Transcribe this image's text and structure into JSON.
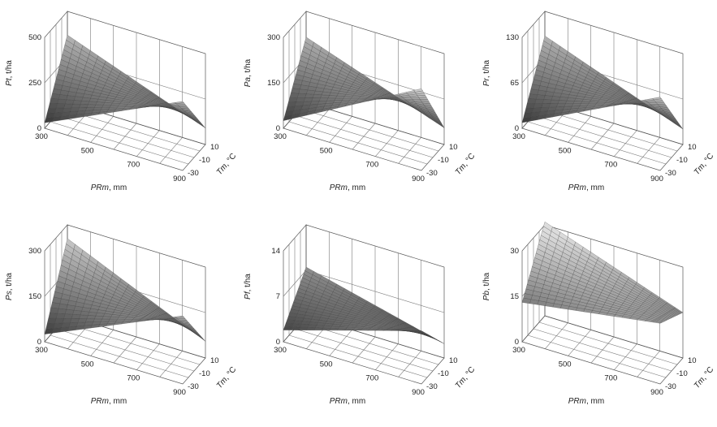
{
  "chart_data": [
    {
      "type": "surface",
      "zlabel_var": "Pt",
      "zlabel_unit": ", t/ha",
      "xlabel_var": "PRm",
      "xlabel_unit": ", mm",
      "ylabel_var": "Tm",
      "ylabel_unit": ", °C",
      "x_ticks": [
        "300",
        "500",
        "700",
        "900"
      ],
      "y_ticks": [
        "-30",
        "-10",
        "10"
      ],
      "z_ticks": [
        "0",
        "250",
        "500"
      ],
      "xlim": [
        300,
        900
      ],
      "ylim": [
        -30,
        10
      ],
      "zlim": [
        0,
        500
      ],
      "corners": {
        "x300_y10": 370,
        "x900_y10": 90,
        "x300_y-30": 30,
        "x900_y-30": 380
      }
    },
    {
      "type": "surface",
      "zlabel_var": "Pa",
      "zlabel_unit": ", t/ha",
      "xlabel_var": "PRm",
      "xlabel_unit": ", mm",
      "ylabel_var": "Tm",
      "ylabel_unit": ", °C",
      "x_ticks": [
        "300",
        "500",
        "700",
        "900"
      ],
      "y_ticks": [
        "-30",
        "-10",
        "10"
      ],
      "z_ticks": [
        "0",
        "150",
        "300"
      ],
      "xlim": [
        300,
        900
      ],
      "ylim": [
        -30,
        10
      ],
      "zlim": [
        0,
        300
      ],
      "corners": {
        "x300_y10": 215,
        "x900_y10": 55,
        "x300_y-30": 25,
        "x900_y-30": 270
      }
    },
    {
      "type": "surface",
      "zlabel_var": "Pr",
      "zlabel_unit": ", t/ha",
      "xlabel_var": "PRm",
      "xlabel_unit": ", mm",
      "ylabel_var": "Tm",
      "ylabel_unit": ", °C",
      "x_ticks": [
        "300",
        "500",
        "700",
        "900"
      ],
      "y_ticks": [
        "-30",
        "-10",
        "10"
      ],
      "z_ticks": [
        "0",
        "65",
        "130"
      ],
      "xlim": [
        300,
        900
      ],
      "ylim": [
        -30,
        10
      ],
      "zlim": [
        0,
        130
      ],
      "corners": {
        "x300_y10": 95,
        "x900_y10": 22,
        "x300_y-30": 8,
        "x900_y-30": 105
      }
    },
    {
      "type": "surface",
      "zlabel_var": "Ps",
      "zlabel_unit": ", t/ha",
      "xlabel_var": "PRm",
      "xlabel_unit": ", mm",
      "ylabel_var": "Tm",
      "ylabel_unit": ", °C",
      "x_ticks": [
        "300",
        "500",
        "700",
        "900"
      ],
      "y_ticks": [
        "-30",
        "-10",
        "10"
      ],
      "z_ticks": [
        "0",
        "150",
        "300"
      ],
      "xlim": [
        300,
        900
      ],
      "ylim": [
        -30,
        10
      ],
      "zlim": [
        0,
        300
      ],
      "corners": {
        "x300_y10": 255,
        "x900_y10": 55,
        "x300_y-30": 25,
        "x900_y-30": 225
      }
    },
    {
      "type": "surface",
      "zlabel_var": "Pf",
      "zlabel_unit": ", t/ha",
      "xlabel_var": "PRm",
      "xlabel_unit": ", mm",
      "ylabel_var": "Tm",
      "ylabel_unit": ", °C",
      "x_ticks": [
        "300",
        "500",
        "700",
        "900"
      ],
      "y_ticks": [
        "-30",
        "-10",
        "10"
      ],
      "z_ticks": [
        "0",
        "7",
        "14"
      ],
      "xlim": [
        300,
        900
      ],
      "ylim": [
        -30,
        10
      ],
      "zlim": [
        0,
        14
      ],
      "corners": {
        "x300_y10": 7.5,
        "x900_y10": 2.2,
        "x300_y-30": 1.8,
        "x900_y-30": 8.2
      }
    },
    {
      "type": "surface",
      "zlabel_var": "Pb",
      "zlabel_unit": ", t/ha",
      "xlabel_var": "PRm",
      "xlabel_unit": ", mm",
      "ylabel_var": "Tm",
      "ylabel_unit": ", °C",
      "x_ticks": [
        "300",
        "500",
        "700",
        "900"
      ],
      "y_ticks": [
        "-30",
        "-10",
        "10"
      ],
      "z_ticks": [
        "0",
        "15",
        "30"
      ],
      "xlim": [
        300,
        900
      ],
      "ylim": [
        -30,
        10
      ],
      "zlim": [
        0,
        30
      ],
      "corners": {
        "x300_y10": 31,
        "x900_y10": 15,
        "x300_y-30": 13,
        "x900_y-30": 20
      }
    }
  ]
}
